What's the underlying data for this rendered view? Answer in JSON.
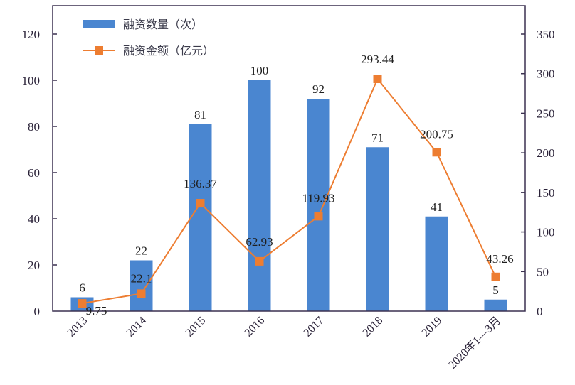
{
  "chart_data": {
    "type": "bar+line",
    "title": "",
    "categories": [
      "2013",
      "2014",
      "2015",
      "2016",
      "2017",
      "2018",
      "2019",
      "2020年1—3月"
    ],
    "series": [
      {
        "name": "融资数量（次）",
        "type": "bar",
        "axis": "left",
        "color": "#4a86d0",
        "values": [
          6,
          22,
          81,
          100,
          92,
          71,
          41,
          5
        ]
      },
      {
        "name": "融资金额（亿元）",
        "type": "line",
        "axis": "right",
        "color": "#ed7d31",
        "values": [
          9.75,
          22.1,
          136.37,
          62.93,
          119.93,
          293.44,
          200.75,
          43.26
        ]
      }
    ],
    "bar_labels": [
      "6",
      "22",
      "81",
      "100",
      "92",
      "71",
      "41",
      "5"
    ],
    "line_labels": [
      "9.75",
      "22.1",
      "136.37",
      "62.93",
      "119.93",
      "293.44",
      "200.75",
      "43.26"
    ],
    "y_left": {
      "min": 0,
      "max": 120,
      "ticks": [
        "0",
        "20",
        "40",
        "60",
        "80",
        "100",
        "120"
      ]
    },
    "y_right": {
      "min": 0,
      "max": 350,
      "ticks": [
        "0",
        "50",
        "100",
        "150",
        "200",
        "250",
        "300",
        "350"
      ]
    },
    "xlabel": "",
    "ylabel": "",
    "legend": {
      "position": "top-left-inside",
      "entries": [
        "融资数量（次）",
        "融资金额（亿元）"
      ]
    },
    "grid": false
  },
  "legend": {
    "bar_label": "融资数量（次）",
    "line_label": "融资金额（亿元）"
  }
}
